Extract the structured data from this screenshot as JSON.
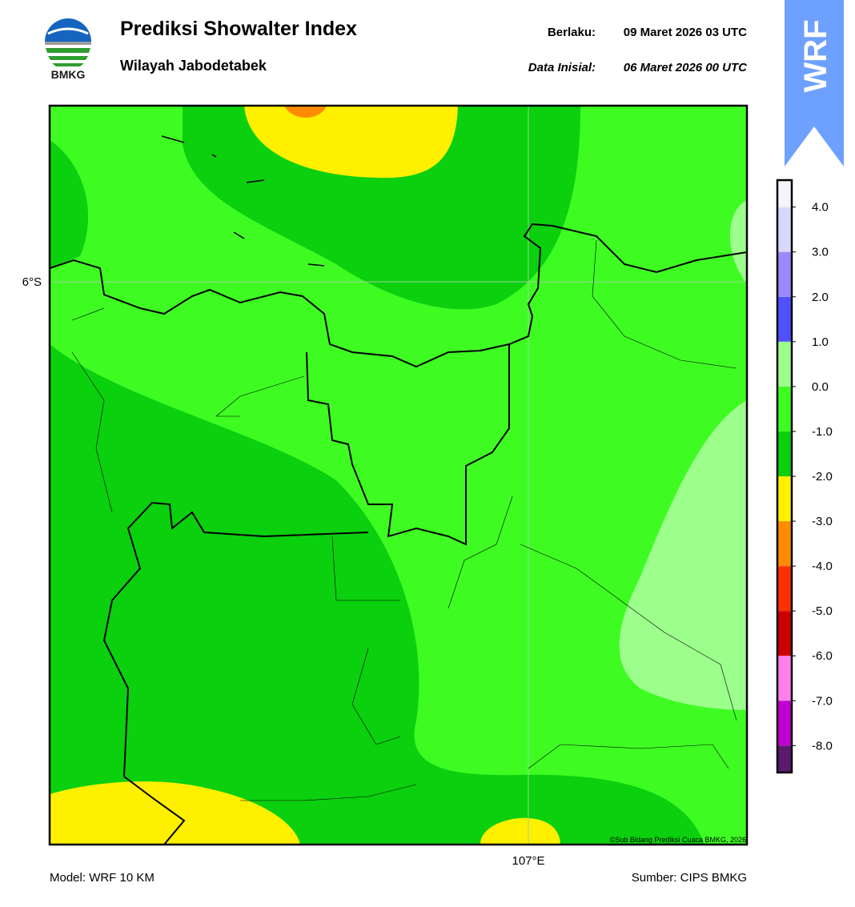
{
  "header": {
    "title": "Prediksi Showalter Index",
    "subtitle": "Wilayah Jabodetabek",
    "valid_label": "Berlaku:",
    "valid_time": "09 Maret 2026 03 UTC",
    "init_label": "Data Inisial:",
    "init_time": "06 Maret 2026 00 UTC",
    "logo_text": "BMKG",
    "badge": "WRF"
  },
  "map": {
    "lat_label": "6°S",
    "lon_label": "107°E",
    "credit": "©Sub Bidang Prediksi Cuaca BMKG, 2026"
  },
  "colorbar": {
    "range": [
      -8.6,
      4.6
    ],
    "ticks": [
      {
        "value": -8,
        "label": "-8.0"
      },
      {
        "value": -7,
        "label": "-7.0"
      },
      {
        "value": -6,
        "label": "-6.0"
      },
      {
        "value": -5,
        "label": "-5.0"
      },
      {
        "value": -4,
        "label": "-4.0"
      },
      {
        "value": -3,
        "label": "-3.0"
      },
      {
        "value": -2,
        "label": "-2.0"
      },
      {
        "value": -1,
        "label": "-1.0"
      },
      {
        "value": 0,
        "label": "0.0"
      },
      {
        "value": 1,
        "label": "1.0"
      },
      {
        "value": 2,
        "label": "2.0"
      },
      {
        "value": 3,
        "label": "3.0"
      },
      {
        "value": 4,
        "label": "4.0"
      }
    ],
    "colors": [
      "#5a1a6e",
      "#c000d0",
      "#ff80e8",
      "#cc0000",
      "#ff3000",
      "#ff8c00",
      "#fff000",
      "#0ad00e",
      "#3efc22",
      "#9cff8c",
      "#5050ff",
      "#9c88ff",
      "#d8d8ff",
      "#f4f4ff"
    ]
  },
  "footer": {
    "model": "Model: WRF 10 KM",
    "source": "Sumber: CIPS BMKG"
  }
}
